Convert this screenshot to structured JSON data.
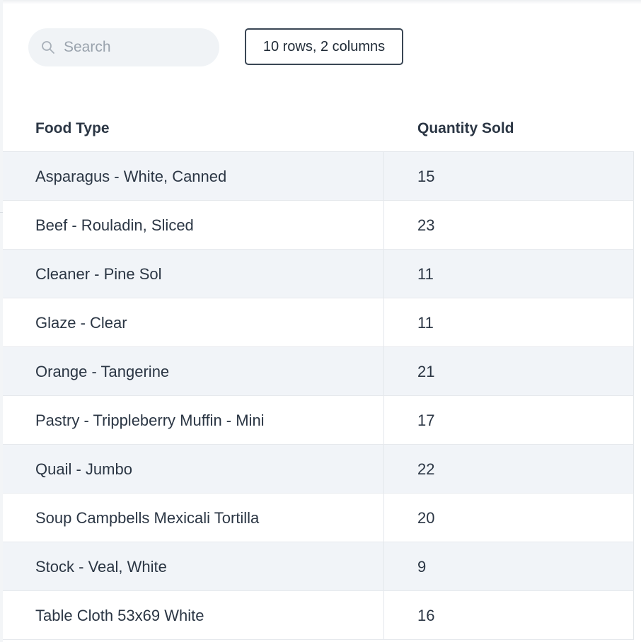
{
  "search": {
    "placeholder": "Search",
    "value": ""
  },
  "summary": {
    "label": "10 rows, 2 columns"
  },
  "table": {
    "columns": [
      "Food Type",
      "Quantity Sold"
    ],
    "rows": [
      [
        "Asparagus - White, Canned",
        "15"
      ],
      [
        "Beef - Rouladin, Sliced",
        "23"
      ],
      [
        "Cleaner - Pine Sol",
        "11"
      ],
      [
        "Glaze - Clear",
        "11"
      ],
      [
        "Orange - Tangerine",
        "21"
      ],
      [
        "Pastry - Trippleberry Muffin - Mini",
        "17"
      ],
      [
        "Quail - Jumbo",
        "22"
      ],
      [
        "Soup Campbells Mexicali Tortilla",
        "20"
      ],
      [
        "Stock - Veal, White",
        "9"
      ],
      [
        "Table Cloth 53x69 White",
        "16"
      ]
    ]
  },
  "icons": {
    "search": "search-icon"
  },
  "colors": {
    "row_alt": "#f1f4f8",
    "text": "#2b3644",
    "search_bg": "#f0f3f6"
  }
}
